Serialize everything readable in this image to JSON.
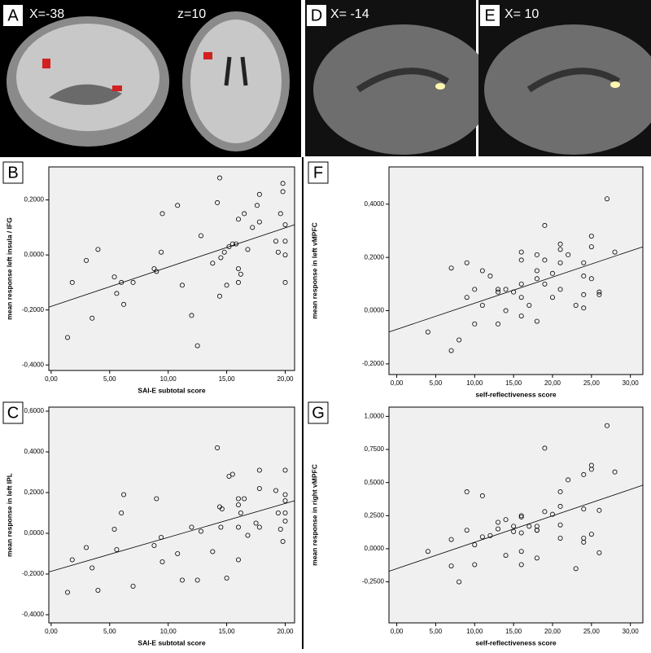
{
  "images": [
    {
      "label": "A",
      "coords": [
        "X=-38",
        "z=10"
      ]
    },
    {
      "label": "D",
      "coords": [
        "X= -14"
      ]
    },
    {
      "label": "E",
      "coords": [
        "X= 10"
      ]
    }
  ],
  "chart_data": [
    {
      "type": "scatter",
      "label": "B",
      "x_label": "SAI-E subtotal score",
      "y_label": "mean response left insula / IFG",
      "x": [
        1.4,
        1.8,
        3.0,
        3.5,
        4.0,
        5.4,
        5.6,
        6.0,
        6.2,
        7.0,
        8.8,
        9.0,
        9.4,
        9.5,
        10.8,
        11.2,
        12.0,
        12.5,
        12.8,
        13.8,
        14.2,
        14.4,
        14.4,
        14.5,
        14.8,
        15.0,
        15.2,
        15.5,
        15.8,
        16.0,
        16.0,
        16.0,
        16.2,
        16.5,
        16.8,
        17.2,
        17.6,
        17.8,
        17.8,
        19.2,
        19.4,
        19.6,
        19.8,
        19.8,
        20.0,
        20.0,
        20.0,
        20.0
      ],
      "y": [
        -0.3,
        -0.1,
        -0.02,
        -0.23,
        0.02,
        -0.08,
        -0.14,
        -0.1,
        -0.18,
        -0.1,
        -0.05,
        -0.06,
        0.01,
        0.15,
        0.18,
        -0.11,
        -0.22,
        -0.33,
        0.07,
        -0.03,
        0.19,
        0.28,
        -0.15,
        -0.01,
        0.01,
        -0.11,
        0.03,
        0.04,
        0.04,
        0.13,
        -0.05,
        -0.1,
        -0.07,
        0.15,
        0.02,
        0.1,
        0.18,
        0.22,
        0.12,
        0.05,
        0.01,
        0.15,
        0.26,
        0.23,
        0.11,
        0.05,
        0.0,
        -0.1
      ],
      "fit": {
        "x": [
          -0.2,
          20.8
        ],
        "y": [
          -0.19,
          0.11
        ]
      },
      "xlim": [
        -0.2,
        20.8
      ],
      "ylim": [
        -0.42,
        0.32
      ],
      "xticks": [
        {
          "value": 0,
          "label": "0,00"
        },
        {
          "value": 5,
          "label": "5,00"
        },
        {
          "value": 10,
          "label": "10,00"
        },
        {
          "value": 15,
          "label": "15,00"
        },
        {
          "value": 20,
          "label": "20,00"
        }
      ],
      "yticks": [
        {
          "value": -0.4,
          "label": "-0,4000"
        },
        {
          "value": -0.2,
          "label": "-0,2000"
        },
        {
          "value": 0,
          "label": "0,0000"
        },
        {
          "value": 0.2,
          "label": "0,2000"
        }
      ]
    },
    {
      "type": "scatter",
      "label": "C",
      "x_label": "SAI-E subtotal score",
      "y_label": "mean response in left IPL",
      "x": [
        1.4,
        1.8,
        3.0,
        3.5,
        4.0,
        5.4,
        5.6,
        6.0,
        6.2,
        7.0,
        8.8,
        9.0,
        9.4,
        9.5,
        10.8,
        11.2,
        12.0,
        12.5,
        12.8,
        13.8,
        14.2,
        14.4,
        14.5,
        14.6,
        15.0,
        15.2,
        15.5,
        16.0,
        16.0,
        16.0,
        16.0,
        16.2,
        16.5,
        16.8,
        17.5,
        17.8,
        17.8,
        17.8,
        19.2,
        19.4,
        19.6,
        19.8,
        20.0,
        20.0,
        20.0,
        20.0,
        20.0
      ],
      "y": [
        -0.29,
        -0.13,
        -0.07,
        -0.17,
        -0.28,
        0.02,
        -0.08,
        0.1,
        0.19,
        -0.26,
        -0.06,
        0.17,
        -0.02,
        -0.14,
        -0.1,
        -0.23,
        0.03,
        -0.23,
        0.01,
        -0.09,
        0.42,
        0.13,
        0.03,
        0.12,
        -0.22,
        0.28,
        0.29,
        0.17,
        0.14,
        0.03,
        -0.13,
        0.1,
        0.17,
        -0.01,
        0.05,
        0.31,
        0.22,
        0.03,
        0.21,
        0.1,
        0.02,
        -0.04,
        0.31,
        0.19,
        0.16,
        0.1,
        0.06
      ],
      "fit": {
        "x": [
          -0.2,
          20.8
        ],
        "y": [
          -0.19,
          0.16
        ]
      },
      "xlim": [
        -0.2,
        20.8
      ],
      "ylim": [
        -0.44,
        0.62
      ],
      "xticks": [
        {
          "value": 0,
          "label": "0,00"
        },
        {
          "value": 5,
          "label": "5,00"
        },
        {
          "value": 10,
          "label": "10,00"
        },
        {
          "value": 15,
          "label": "15,00"
        },
        {
          "value": 20,
          "label": "20,00"
        }
      ],
      "yticks": [
        {
          "value": -0.4,
          "label": "-0,4000"
        },
        {
          "value": -0.2,
          "label": "-0,2000"
        },
        {
          "value": 0,
          "label": "0,0000"
        },
        {
          "value": 0.2,
          "label": "0,2000"
        },
        {
          "value": 0.4,
          "label": "0,4000"
        },
        {
          "value": 0.6,
          "label": "0,6000"
        }
      ]
    },
    {
      "type": "scatter",
      "label": "F",
      "x_label": "self-reflectiveness score",
      "y_label": "mean response in left vMPFC",
      "x": [
        4,
        7,
        7,
        8,
        9,
        9,
        10,
        10,
        11,
        11,
        12,
        13,
        13,
        13,
        14,
        14,
        15,
        16,
        16,
        16,
        16,
        16,
        17,
        18,
        18,
        18,
        18,
        19,
        19,
        19,
        20,
        20,
        21,
        21,
        21,
        21,
        22,
        23,
        24,
        24,
        24,
        24,
        25,
        25,
        25,
        26,
        26,
        27,
        28
      ],
      "y": [
        -0.08,
        0.16,
        -0.15,
        -0.11,
        0.18,
        0.05,
        0.08,
        -0.05,
        0.02,
        0.15,
        0.13,
        0.08,
        0.07,
        -0.05,
        0.0,
        0.08,
        0.07,
        0.22,
        0.19,
        0.1,
        0.05,
        -0.02,
        0.02,
        0.21,
        0.15,
        0.12,
        -0.04,
        0.32,
        0.19,
        0.1,
        0.14,
        0.05,
        0.25,
        0.23,
        0.18,
        0.08,
        0.21,
        0.02,
        0.18,
        0.13,
        0.06,
        0.01,
        0.28,
        0.24,
        0.12,
        0.07,
        0.06,
        0.42,
        0.22
      ],
      "fit": {
        "x": [
          -1.0,
          31.6
        ],
        "y": [
          -0.08,
          0.24
        ]
      },
      "xlim": [
        -1.0,
        31.6
      ],
      "ylim": [
        -0.24,
        0.54
      ],
      "xticks": [
        {
          "value": 0,
          "label": "0,00"
        },
        {
          "value": 5,
          "label": "5,00"
        },
        {
          "value": 10,
          "label": "10,00"
        },
        {
          "value": 15,
          "label": "15,00"
        },
        {
          "value": 20,
          "label": "20,00"
        },
        {
          "value": 25,
          "label": "25,00"
        },
        {
          "value": 30,
          "label": "30,00"
        }
      ],
      "yticks": [
        {
          "value": -0.2,
          "label": "-0,2000"
        },
        {
          "value": 0,
          "label": "0,0000"
        },
        {
          "value": 0.2,
          "label": "0,2000"
        },
        {
          "value": 0.4,
          "label": "0,4000"
        }
      ]
    },
    {
      "type": "scatter",
      "label": "G",
      "x_label": "self-reflectiveness score",
      "y_label": "mean response in right vMPFC",
      "x": [
        4,
        7,
        7,
        8,
        9,
        9,
        10,
        10,
        11,
        11,
        12,
        13,
        13,
        14,
        14,
        15,
        15,
        16,
        16,
        16,
        16,
        16,
        17,
        18,
        18,
        18,
        18,
        19,
        19,
        20,
        21,
        21,
        21,
        21,
        22,
        23,
        24,
        24,
        24,
        24,
        25,
        25,
        25,
        26,
        26,
        27,
        28
      ],
      "y": [
        -0.02,
        0.07,
        -0.13,
        -0.25,
        0.43,
        0.14,
        0.03,
        -0.12,
        0.4,
        0.09,
        0.1,
        0.2,
        0.15,
        0.22,
        -0.05,
        0.13,
        0.17,
        0.25,
        0.24,
        0.12,
        -0.02,
        -0.12,
        0.17,
        0.14,
        0.14,
        0.17,
        -0.07,
        0.76,
        0.28,
        0.26,
        0.43,
        0.32,
        0.18,
        0.08,
        0.52,
        -0.15,
        0.56,
        0.3,
        0.08,
        0.05,
        0.63,
        0.6,
        0.11,
        0.29,
        -0.03,
        0.93,
        0.58
      ],
      "fit": {
        "x": [
          -1.0,
          31.6
        ],
        "y": [
          -0.17,
          0.48
        ]
      },
      "xlim": [
        -1.0,
        31.6
      ],
      "ylim": [
        -0.56,
        1.07
      ],
      "xticks": [
        {
          "value": 0,
          "label": "0,00"
        },
        {
          "value": 5,
          "label": "5,00"
        },
        {
          "value": 10,
          "label": "10,00"
        },
        {
          "value": 15,
          "label": "15,00"
        },
        {
          "value": 20,
          "label": "20,00"
        },
        {
          "value": 25,
          "label": "25,00"
        },
        {
          "value": 30,
          "label": "30,00"
        }
      ],
      "yticks": [
        {
          "value": -0.25,
          "label": "-0,2500"
        },
        {
          "value": 0,
          "label": "0,0000"
        },
        {
          "value": 0.25,
          "label": "0,2500"
        },
        {
          "value": 0.5,
          "label": "0,5000"
        },
        {
          "value": 0.75,
          "label": "0,7500"
        },
        {
          "value": 1,
          "label": "1,0000"
        }
      ]
    }
  ]
}
